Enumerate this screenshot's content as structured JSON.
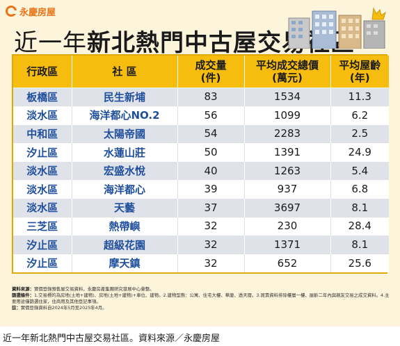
{
  "brand": {
    "name": "永慶房屋",
    "color": "#e8751a"
  },
  "title": {
    "prefix": "近一年",
    "main": "新北熱門中古屋交易社區"
  },
  "table": {
    "headers": {
      "district": "行政區",
      "community": "社 區",
      "volume": [
        "成交量",
        "(件)"
      ],
      "avg_price": [
        "平均成交總價",
        "(萬元)"
      ],
      "avg_age": [
        "平均屋齡",
        "(年)"
      ]
    },
    "rows": [
      {
        "district": "板橋區",
        "community": "民生新埔",
        "volume": "83",
        "avg_price": "1534",
        "avg_age": "11.3"
      },
      {
        "district": "淡水區",
        "community": "海洋都心NO.2",
        "volume": "56",
        "avg_price": "1099",
        "avg_age": "6.2"
      },
      {
        "district": "中和區",
        "community": "太陽帝國",
        "volume": "54",
        "avg_price": "2283",
        "avg_age": "2.5"
      },
      {
        "district": "汐止區",
        "community": "水蓮山莊",
        "volume": "50",
        "avg_price": "1391",
        "avg_age": "24.9"
      },
      {
        "district": "淡水區",
        "community": "宏盛水悅",
        "volume": "40",
        "avg_price": "1263",
        "avg_age": "5.4"
      },
      {
        "district": "淡水區",
        "community": "海洋都心",
        "volume": "39",
        "avg_price": "937",
        "avg_age": "6.8"
      },
      {
        "district": "淡水區",
        "community": "天藝",
        "volume": "37",
        "avg_price": "3697",
        "avg_age": "8.1"
      },
      {
        "district": "三芝區",
        "community": "熱帶嶼",
        "volume": "32",
        "avg_price": "230",
        "avg_age": "28.4"
      },
      {
        "district": "汐止區",
        "community": "超級花園",
        "volume": "32",
        "avg_price": "1371",
        "avg_age": "8.1"
      },
      {
        "district": "汐止區",
        "community": "摩天鎮",
        "volume": "32",
        "avg_price": "652",
        "avg_age": "25.6"
      }
    ]
  },
  "notes": {
    "source_label": "資料來源：",
    "source_text": "實價登錄預售屋交易資料，永慶房產集團研究發展中心彙整。",
    "criteria_label": "篩選條件：",
    "criteria_text": "1.交易標的為房地(土地+建物)、房地(土地+建物)+車位、建物。2.建物型態：公寓、住宅大樓、華廈、透天厝。3.買賣資料排除樓層一樓、屋齡二年內與親友交易之成交資料。4.主要用途僅篩選住家，住商用及其他登記事項。",
    "note_label": "註：",
    "note_text": "實價登錄資料自2024年5月至2025年4月。"
  },
  "caption": "近一年新北熱門中古屋交易社區。資料來源／永慶房屋",
  "colors": {
    "background": "#fdf4dc",
    "header": "#f6bd0f",
    "row_shaded": "#dfe2e8",
    "label_blue": "#1f4f9c"
  }
}
